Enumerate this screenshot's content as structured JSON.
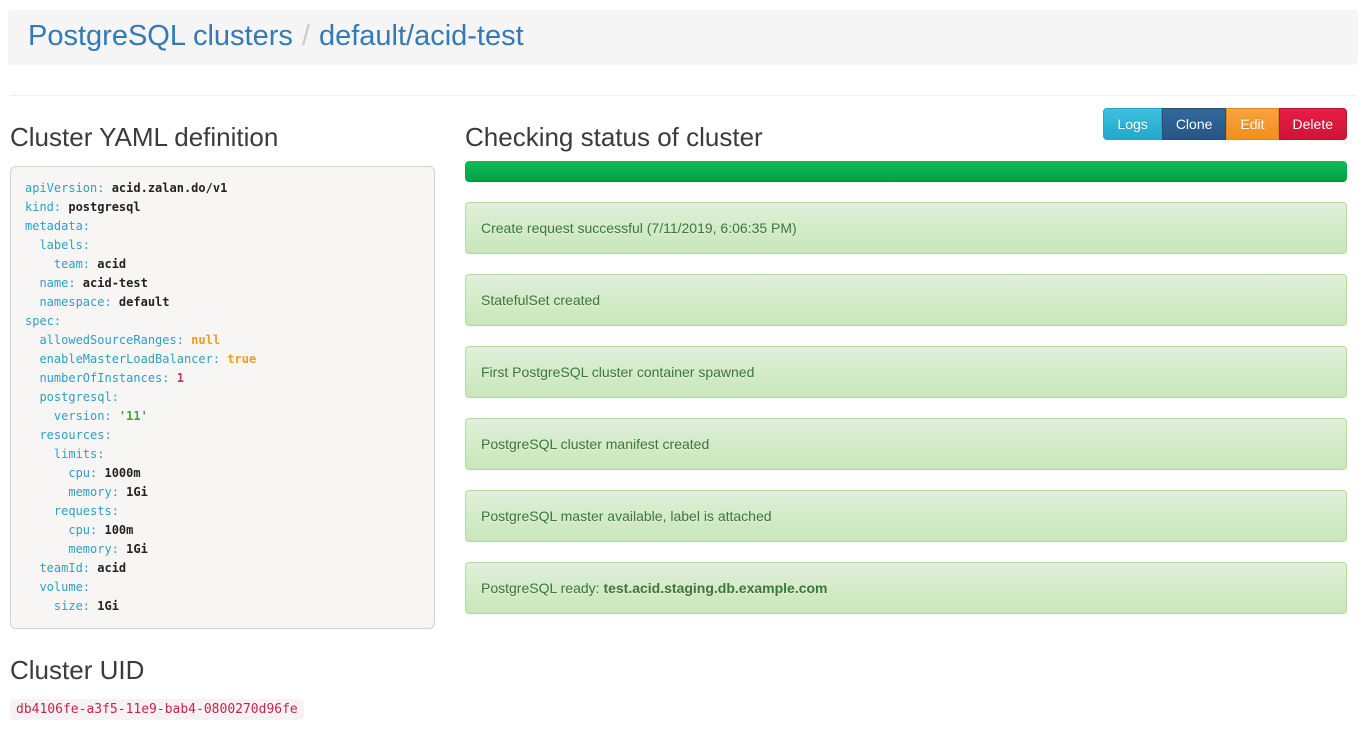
{
  "breadcrumb": {
    "root": "PostgreSQL clusters",
    "separator": "/",
    "current": "default/acid-test"
  },
  "yaml_section": {
    "title": "Cluster YAML definition",
    "lines": [
      {
        "indent": 0,
        "key": "apiVersion",
        "value": "acid.zalan.do/v1",
        "type": "plain"
      },
      {
        "indent": 0,
        "key": "kind",
        "value": "postgresql",
        "type": "plain"
      },
      {
        "indent": 0,
        "key": "metadata",
        "value": "",
        "type": "plain"
      },
      {
        "indent": 1,
        "key": "labels",
        "value": "",
        "type": "plain"
      },
      {
        "indent": 2,
        "key": "team",
        "value": "acid",
        "type": "plain"
      },
      {
        "indent": 1,
        "key": "name",
        "value": "acid-test",
        "type": "plain"
      },
      {
        "indent": 1,
        "key": "namespace",
        "value": "default",
        "type": "plain"
      },
      {
        "indent": 0,
        "key": "spec",
        "value": "",
        "type": "plain"
      },
      {
        "indent": 1,
        "key": "allowedSourceRanges",
        "value": "null",
        "type": "literal"
      },
      {
        "indent": 1,
        "key": "enableMasterLoadBalancer",
        "value": "true",
        "type": "literal"
      },
      {
        "indent": 1,
        "key": "numberOfInstances",
        "value": "1",
        "type": "number"
      },
      {
        "indent": 1,
        "key": "postgresql",
        "value": "",
        "type": "plain"
      },
      {
        "indent": 2,
        "key": "version",
        "value": "'11'",
        "type": "string"
      },
      {
        "indent": 1,
        "key": "resources",
        "value": "",
        "type": "plain"
      },
      {
        "indent": 2,
        "key": "limits",
        "value": "",
        "type": "plain"
      },
      {
        "indent": 3,
        "key": "cpu",
        "value": "1000m",
        "type": "plain"
      },
      {
        "indent": 3,
        "key": "memory",
        "value": "1Gi",
        "type": "plain"
      },
      {
        "indent": 2,
        "key": "requests",
        "value": "",
        "type": "plain"
      },
      {
        "indent": 3,
        "key": "cpu",
        "value": "100m",
        "type": "plain"
      },
      {
        "indent": 3,
        "key": "memory",
        "value": "1Gi",
        "type": "plain"
      },
      {
        "indent": 1,
        "key": "teamId",
        "value": "acid",
        "type": "plain"
      },
      {
        "indent": 1,
        "key": "volume",
        "value": "",
        "type": "plain"
      },
      {
        "indent": 2,
        "key": "size",
        "value": "1Gi",
        "type": "plain"
      }
    ]
  },
  "uid_section": {
    "title": "Cluster UID",
    "uid": "db4106fe-a3f5-11e9-bab4-0800270d96fe"
  },
  "status_section": {
    "title": "Checking status of cluster",
    "buttons": [
      {
        "label": "Logs",
        "variant": "info"
      },
      {
        "label": "Clone",
        "variant": "primary"
      },
      {
        "label": "Edit",
        "variant": "warning"
      },
      {
        "label": "Delete",
        "variant": "danger"
      }
    ],
    "progress_percent": 100,
    "progress_color": "#00ab4b",
    "messages": [
      {
        "text": "Create request successful (7/11/2019, 6:06:35 PM)",
        "bold": ""
      },
      {
        "text": "StatefulSet created",
        "bold": ""
      },
      {
        "text": "First PostgreSQL cluster container spawned",
        "bold": ""
      },
      {
        "text": "PostgreSQL cluster manifest created",
        "bold": ""
      },
      {
        "text": "PostgreSQL master available, label is attached",
        "bold": ""
      },
      {
        "text": "PostgreSQL ready: ",
        "bold": "test.acid.staging.db.example.com"
      }
    ]
  },
  "colors": {
    "link_blue": "#337ab7",
    "alert_text": "#3c763d",
    "yaml_key": "#2e9fc4",
    "uid_text": "#c7254e"
  }
}
